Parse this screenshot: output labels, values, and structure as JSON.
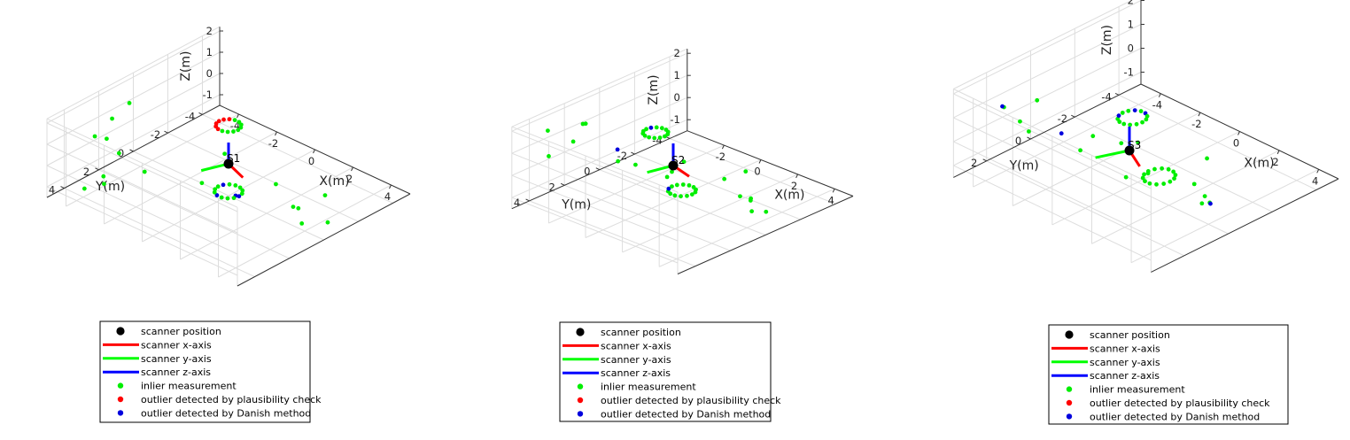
{
  "figure": {
    "background": "#ffffff"
  },
  "legend_entries": [
    {
      "label": "scanner position",
      "marker": "dot",
      "color": "#000000"
    },
    {
      "label": "scanner x-axis",
      "marker": "line",
      "color": "#ff0000"
    },
    {
      "label": "scanner y-axis",
      "marker": "line",
      "color": "#00ff00"
    },
    {
      "label": "scanner z-axis",
      "marker": "line",
      "color": "#0000ff"
    },
    {
      "label": "inlier measurement",
      "marker": "small-dot",
      "color": "#00ee00"
    },
    {
      "label": "outlier detected by plausibility check",
      "marker": "small-dot",
      "color": "#ff0000"
    },
    {
      "label": "outlier detected by Danish method",
      "marker": "small-dot",
      "color": "#0000dd"
    }
  ],
  "chart_data": [
    {
      "type": "scatter",
      "projection": "3d",
      "xlabel": "X(m)",
      "ylabel": "Y(m)",
      "zlabel": "Z(m)",
      "xlim": [
        -5,
        5
      ],
      "ylim": [
        -5,
        5
      ],
      "zlim": [
        -1.5,
        2.2
      ],
      "xticks": [
        -4,
        -2,
        0,
        2,
        4
      ],
      "yticks": [
        -4,
        -2,
        0,
        2,
        4
      ],
      "zticks": [
        -1,
        0,
        1,
        2
      ],
      "grid": true,
      "scanner": {
        "label": "S1",
        "position": [
          0,
          0,
          0
        ],
        "yaw_deg": 20
      },
      "rings": [
        {
          "center": [
            0,
            0,
            1.8
          ],
          "radius": 0.5,
          "count": 14,
          "outliers": [
            {
              "i": 4,
              "status": "plausibility"
            },
            {
              "i": 5,
              "status": "plausibility"
            },
            {
              "i": 6,
              "status": "plausibility"
            },
            {
              "i": 7,
              "status": "plausibility"
            },
            {
              "i": 8,
              "status": "plausibility"
            },
            {
              "i": 9,
              "status": "plausibility"
            }
          ]
        },
        {
          "center": [
            0,
            0,
            -1.3
          ],
          "radius": 0.55,
          "count": 14,
          "outliers": [
            {
              "i": 0,
              "status": "danish"
            },
            {
              "i": 4,
              "status": "danish"
            },
            {
              "i": 8,
              "status": "danish"
            }
          ]
        }
      ],
      "points": [
        {
          "x": -4.3,
          "y": 1.0,
          "z": 1.5,
          "status": "inlier"
        },
        {
          "x": -4.3,
          "y": 2.0,
          "z": 1.2,
          "status": "inlier"
        },
        {
          "x": -4.3,
          "y": 3.0,
          "z": 0.8,
          "status": "inlier"
        },
        {
          "x": -4.3,
          "y": 2.5,
          "z": -1.3,
          "status": "inlier"
        },
        {
          "x": -4.3,
          "y": 1.6,
          "z": -0.6,
          "status": "inlier"
        },
        {
          "x": -4.3,
          "y": 3.6,
          "z": -1.4,
          "status": "inlier"
        },
        {
          "x": -2.5,
          "y": 4.3,
          "z": 2.0,
          "status": "inlier"
        },
        {
          "x": 2.5,
          "y": 4.3,
          "z": 2.0,
          "status": "inlier"
        },
        {
          "x": 4.0,
          "y": 4.0,
          "z": 1.9,
          "status": "danish"
        },
        {
          "x": 4.3,
          "y": 2.0,
          "z": 1.7,
          "status": "inlier"
        },
        {
          "x": 4.3,
          "y": 1.0,
          "z": 0.2,
          "status": "inlier"
        },
        {
          "x": 4.3,
          "y": 0.7,
          "z": 0.0,
          "status": "inlier"
        },
        {
          "x": 4.3,
          "y": 0.5,
          "z": -0.8,
          "status": "inlier"
        },
        {
          "x": 4.3,
          "y": -1.0,
          "z": -1.4,
          "status": "inlier"
        },
        {
          "x": 2.8,
          "y": -2.5,
          "z": -1.4,
          "status": "inlier"
        },
        {
          "x": -2.2,
          "y": -2.2,
          "z": -1.4,
          "status": "inlier"
        },
        {
          "x": -3.5,
          "y": 1.0,
          "z": -1.4,
          "status": "inlier"
        },
        {
          "x": -4.0,
          "y": 2.8,
          "z": -1.4,
          "status": "inlier"
        }
      ]
    },
    {
      "type": "scatter",
      "projection": "3d",
      "xlabel": "X(m)",
      "ylabel": "Y(m)",
      "zlabel": "Z(m)",
      "xlim": [
        -4,
        5
      ],
      "ylim": [
        -5,
        5
      ],
      "zlim": [
        -1.5,
        2.2
      ],
      "xticks": [
        -2,
        0,
        2,
        4
      ],
      "yticks": [
        -4,
        -2,
        0,
        2,
        4
      ],
      "zticks": [
        -1,
        0,
        1,
        2
      ],
      "grid": true,
      "scanner": {
        "label": "S2",
        "position": [
          0,
          0,
          0
        ],
        "yaw_deg": 15
      },
      "rings": [
        {
          "center": [
            -0.2,
            0.8,
            1.7
          ],
          "radius": 0.5,
          "count": 14,
          "outliers": [
            {
              "i": 8,
              "status": "danish"
            }
          ]
        },
        {
          "center": [
            0,
            -0.5,
            -1.3
          ],
          "radius": 0.55,
          "count": 14,
          "outliers": [
            {
              "i": 6,
              "status": "danish"
            }
          ]
        }
      ],
      "points": [
        {
          "x": -3.0,
          "y": 4.0,
          "z": 2.0,
          "status": "inlier"
        },
        {
          "x": -3.0,
          "y": 2.0,
          "z": 1.6,
          "status": "inlier"
        },
        {
          "x": -3.8,
          "y": 1.0,
          "z": 1.0,
          "status": "inlier"
        },
        {
          "x": -4.0,
          "y": 1.5,
          "z": 0.3,
          "status": "inlier"
        },
        {
          "x": -3.9,
          "y": 3.0,
          "z": 0.2,
          "status": "inlier"
        },
        {
          "x": -3.5,
          "y": -0.5,
          "z": -0.6,
          "status": "danish"
        },
        {
          "x": -3.0,
          "y": -1.0,
          "z": -1.3,
          "status": "inlier"
        },
        {
          "x": 1.0,
          "y": 4.2,
          "z": 2.0,
          "status": "inlier"
        },
        {
          "x": 3.0,
          "y": 3.5,
          "z": 1.7,
          "status": "inlier"
        },
        {
          "x": 4.2,
          "y": 1.5,
          "z": 1.3,
          "status": "inlier"
        },
        {
          "x": 4.2,
          "y": 0.6,
          "z": 0.2,
          "status": "inlier"
        },
        {
          "x": 4.2,
          "y": 0.0,
          "z": -0.2,
          "status": "inlier"
        },
        {
          "x": 3.5,
          "y": -0.8,
          "z": -1.2,
          "status": "inlier"
        },
        {
          "x": 3.8,
          "y": -1.3,
          "z": -1.3,
          "status": "inlier"
        },
        {
          "x": 2.5,
          "y": -1.8,
          "z": -1.3,
          "status": "inlier"
        },
        {
          "x": 0.6,
          "y": -3.5,
          "z": -1.3,
          "status": "inlier"
        },
        {
          "x": -1.5,
          "y": -1.5,
          "z": -1.3,
          "status": "inlier"
        },
        {
          "x": -1.8,
          "y": -2.5,
          "z": -1.3,
          "status": "inlier"
        }
      ]
    },
    {
      "type": "scatter",
      "projection": "3d",
      "xlabel": "X(m)",
      "ylabel": "Y(m)",
      "zlabel": "Z(m)",
      "xlim": [
        -5,
        5
      ],
      "ylim": [
        -5,
        3.5
      ],
      "zlim": [
        -1.5,
        2.2
      ],
      "xticks": [
        -4,
        -2,
        0,
        2,
        4
      ],
      "yticks": [
        -4,
        -2,
        0,
        2
      ],
      "zticks": [
        -1,
        0,
        1,
        2
      ],
      "grid": true,
      "scanner": {
        "label": "S3",
        "position": [
          0,
          0,
          0
        ],
        "yaw_deg": 25
      },
      "rings": [
        {
          "center": [
            0.6,
            0.4,
            1.8
          ],
          "radius": 0.5,
          "count": 14,
          "outliers": [
            {
              "i": 6,
              "status": "danish"
            },
            {
              "i": 9,
              "status": "danish"
            },
            {
              "i": 11,
              "status": "danish"
            }
          ]
        },
        {
          "center": [
            0.5,
            -0.9,
            -1.3
          ],
          "radius": 0.55,
          "count": 14,
          "outliers": []
        }
      ],
      "points": [
        {
          "x": -3.0,
          "y": 3.0,
          "z": 2.0,
          "status": "inlier"
        },
        {
          "x": -3.0,
          "y": 1.5,
          "z": 1.6,
          "status": "inlier"
        },
        {
          "x": -4.2,
          "y": 2.0,
          "z": 1.1,
          "status": "danish"
        },
        {
          "x": -4.2,
          "y": 1.2,
          "z": 0.1,
          "status": "inlier"
        },
        {
          "x": -4.2,
          "y": 0.8,
          "z": -0.5,
          "status": "inlier"
        },
        {
          "x": -4.0,
          "y": -0.5,
          "z": -1.1,
          "status": "danish"
        },
        {
          "x": -3.3,
          "y": -1.3,
          "z": -1.3,
          "status": "inlier"
        },
        {
          "x": 1.2,
          "y": 3.3,
          "z": 2.0,
          "status": "inlier"
        },
        {
          "x": 3.4,
          "y": 3.2,
          "z": 1.7,
          "status": "inlier"
        },
        {
          "x": 3.4,
          "y": 2.2,
          "z": 1.4,
          "status": "inlier"
        },
        {
          "x": 4.4,
          "y": 1.0,
          "z": 0.8,
          "status": "inlier"
        },
        {
          "x": 4.4,
          "y": 0.3,
          "z": -0.3,
          "status": "inlier"
        },
        {
          "x": 4.1,
          "y": 0.0,
          "z": -0.6,
          "status": "danish"
        },
        {
          "x": 3.0,
          "y": -0.6,
          "z": -1.3,
          "status": "inlier"
        },
        {
          "x": 2.7,
          "y": -1.0,
          "z": -1.3,
          "status": "inlier"
        },
        {
          "x": 0.8,
          "y": -2.8,
          "z": -1.3,
          "status": "inlier"
        },
        {
          "x": -2.2,
          "y": -1.6,
          "z": -1.3,
          "status": "inlier"
        },
        {
          "x": -1.8,
          "y": -2.0,
          "z": -1.3,
          "status": "inlier"
        }
      ]
    }
  ]
}
